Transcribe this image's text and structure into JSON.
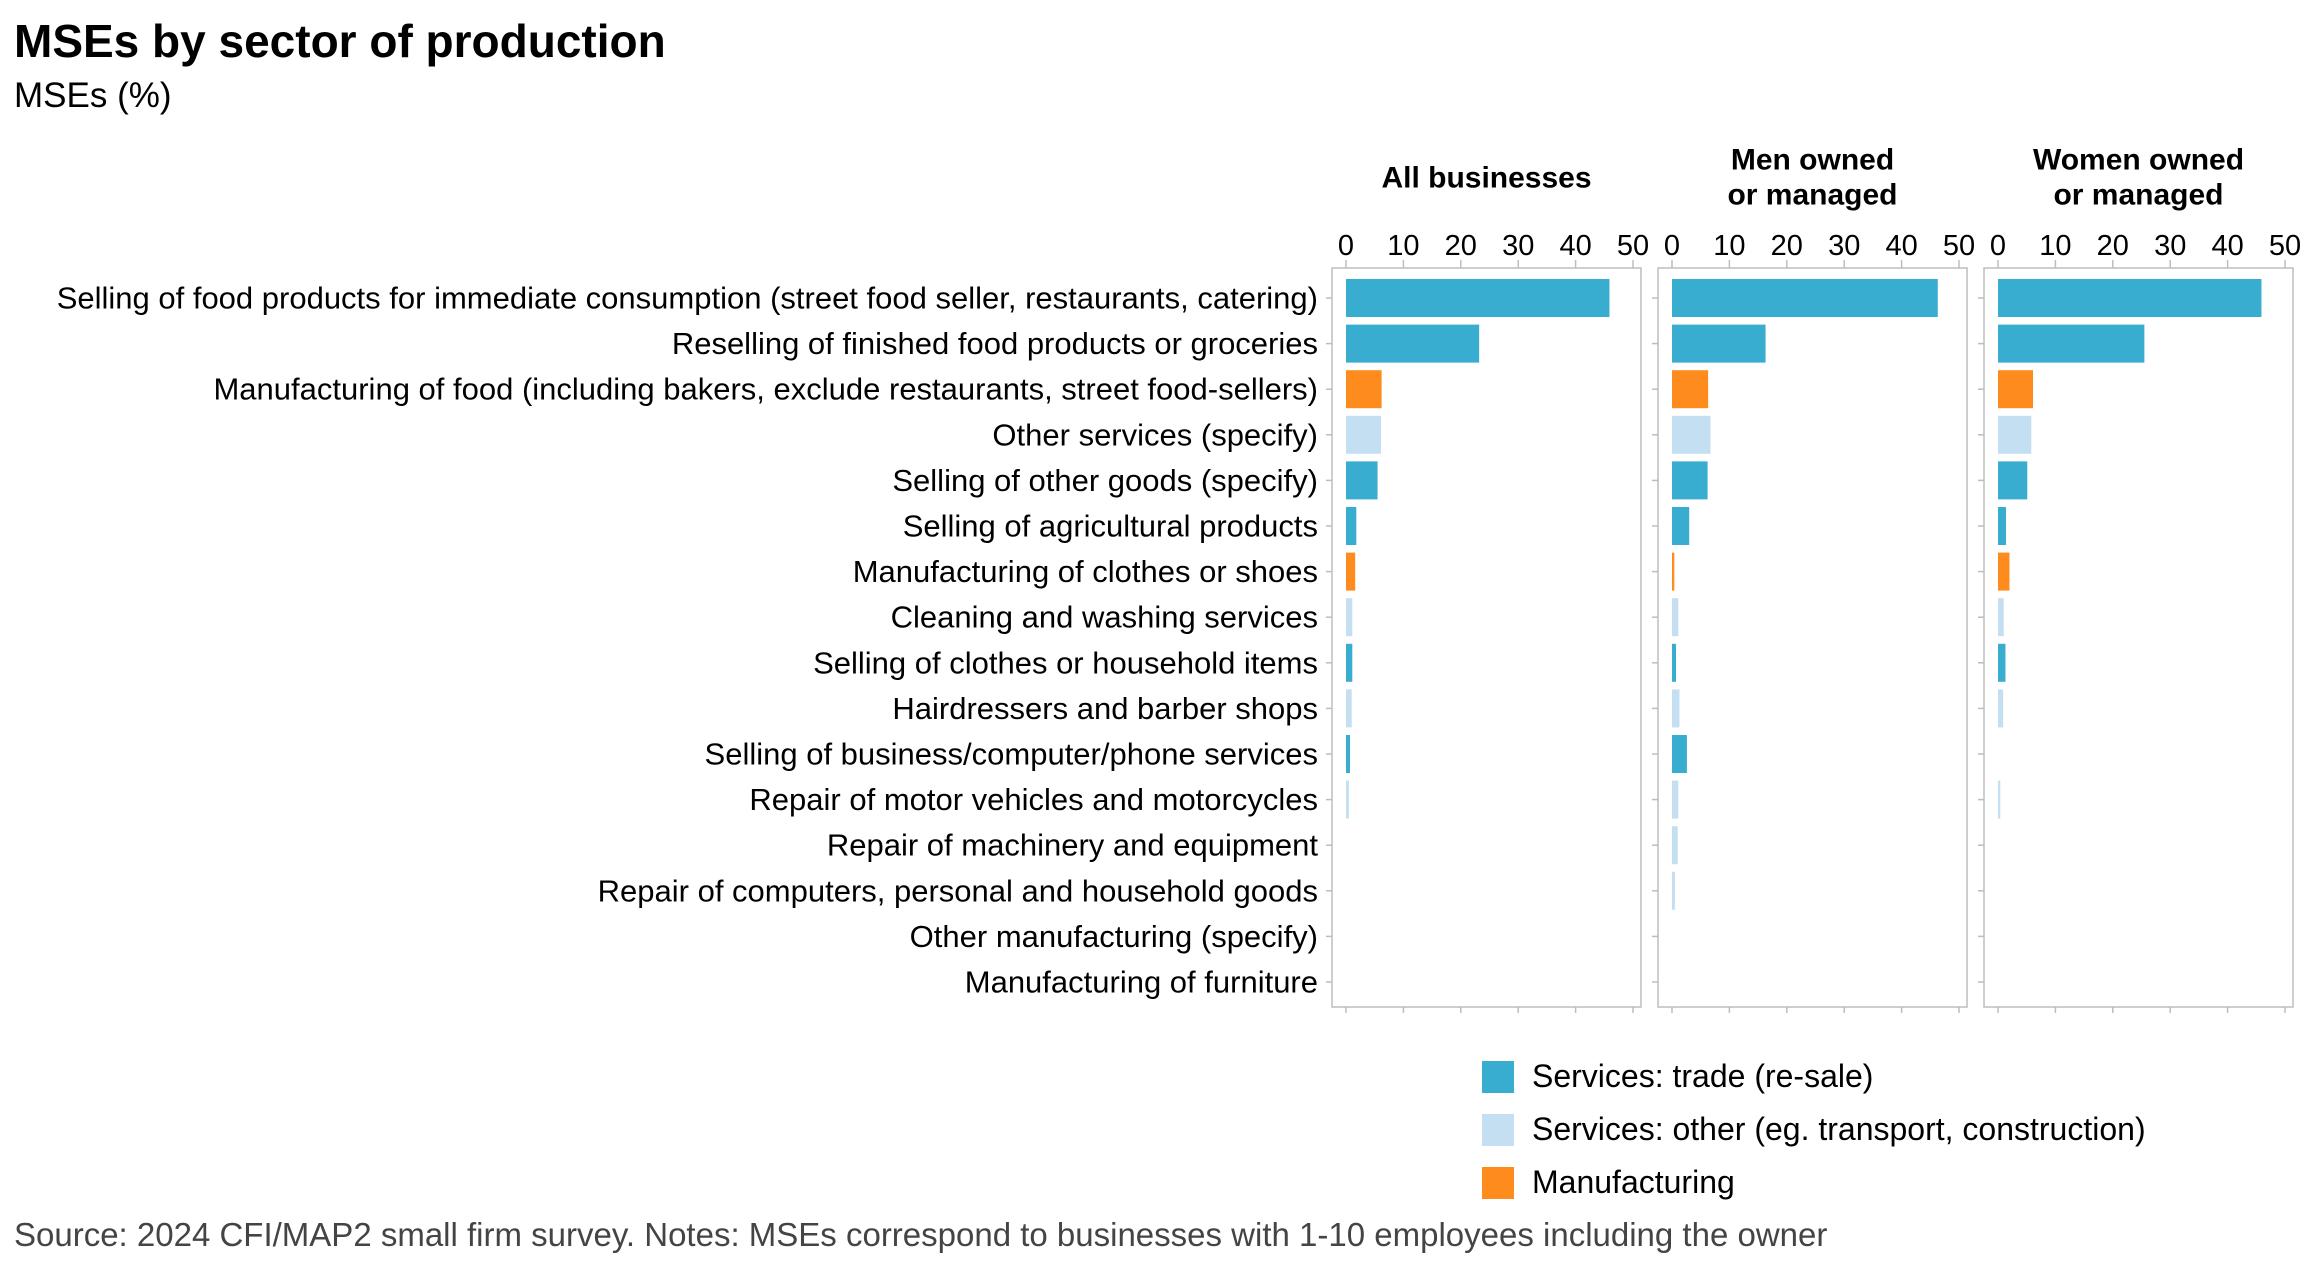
{
  "header": {
    "title": "MSEs by sector of production",
    "subtitle": "MSEs (%)"
  },
  "footer": {
    "source": "Source: 2024 CFI/MAP2 small firm survey. Notes: MSEs correspond to businesses with 1-10 employees including the owner"
  },
  "colors": {
    "trade": "#38ADD0",
    "other": "#C3DFF1",
    "manufacturing": "#FE8B1E",
    "axis": "#bdbdbd",
    "text": "#000000"
  },
  "chart_data": {
    "type": "bar",
    "orientation": "horizontal",
    "title": "MSEs by sector of production",
    "subtitle": "MSEs (%)",
    "xlim": [
      0,
      50
    ],
    "xticks": [
      0,
      10,
      20,
      30,
      40,
      50
    ],
    "grid": false,
    "legend_position": "bottom-right",
    "categories": [
      "Selling of food products for immediate consumption (street food seller, restaurants, catering)",
      "Reselling of finished food products or groceries",
      "Manufacturing of food (including bakers, exclude restaurants, street food-sellers)",
      "Other services (specify)",
      "Selling of other goods (specify)",
      "Selling of agricultural products",
      "Manufacturing of clothes or shoes",
      "Cleaning and washing services",
      "Selling of clothes or household items",
      "Hairdressers and barber shops",
      "Selling of business/computer/phone services",
      "Repair of motor vehicles and motorcycles",
      "Repair of machinery and equipment",
      "Repair of computers, personal and household goods",
      "Other manufacturing (specify)",
      "Manufacturing of furniture"
    ],
    "sector_type": [
      "trade",
      "trade",
      "manufacturing",
      "other",
      "trade",
      "trade",
      "manufacturing",
      "other",
      "trade",
      "other",
      "trade",
      "other",
      "other",
      "other",
      "manufacturing",
      "manufacturing"
    ],
    "legend": [
      {
        "key": "trade",
        "label": "Services: trade (re-sale)"
      },
      {
        "key": "other",
        "label": "Services: other (eg. transport, construction)"
      },
      {
        "key": "manufacturing",
        "label": "Manufacturing"
      }
    ],
    "panels": [
      {
        "title_lines": [
          "All businesses"
        ],
        "values": [
          45.9,
          23.2,
          6.2,
          6.1,
          5.5,
          1.8,
          1.6,
          1.1,
          1.1,
          1.0,
          0.7,
          0.5,
          0,
          0,
          0,
          0
        ]
      },
      {
        "title_lines": [
          "Men owned",
          "or managed"
        ],
        "values": [
          46.3,
          16.3,
          6.3,
          6.7,
          6.2,
          3.0,
          0.4,
          1.1,
          0.7,
          1.3,
          2.6,
          1.1,
          1.0,
          0.5,
          0,
          0
        ]
      },
      {
        "title_lines": [
          "Women owned",
          "or managed"
        ],
        "values": [
          45.9,
          25.5,
          6.1,
          5.8,
          5.1,
          1.4,
          2.0,
          1.0,
          1.3,
          0.9,
          0,
          0.4,
          0,
          0,
          0,
          0
        ]
      }
    ]
  }
}
